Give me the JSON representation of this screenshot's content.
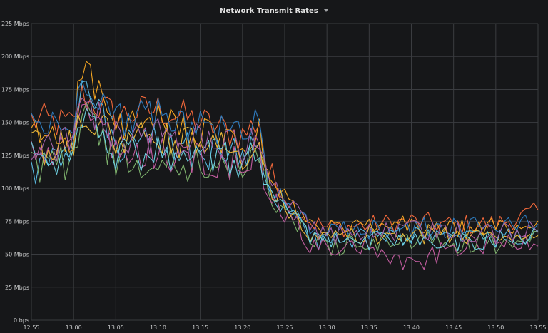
{
  "panel": {
    "title": "Network Transmit Rates"
  },
  "chart_data": {
    "type": "line",
    "title": "Network Transmit Rates",
    "xlabel": "",
    "ylabel": "",
    "ylim": [
      0,
      225
    ],
    "y_unit": "Mbps",
    "y_ticks": [
      {
        "value": 225,
        "label": "225 Mbps"
      },
      {
        "value": 200,
        "label": "200 Mbps"
      },
      {
        "value": 175,
        "label": "175 Mbps"
      },
      {
        "value": 150,
        "label": "150 Mbps"
      },
      {
        "value": 125,
        "label": "125 Mbps"
      },
      {
        "value": 100,
        "label": "100 Mbps"
      },
      {
        "value": 75,
        "label": "75 Mbps"
      },
      {
        "value": 50,
        "label": "50 Mbps"
      },
      {
        "value": 25,
        "label": "25 Mbps"
      },
      {
        "value": 0,
        "label": "0 bps"
      }
    ],
    "x_ticks": [
      "12:55",
      "13:00",
      "13:05",
      "13:10",
      "13:15",
      "13:20",
      "13:25",
      "13:30",
      "13:35",
      "13:40",
      "13:45",
      "13:50",
      "13:55"
    ],
    "grid": true,
    "legend": "none",
    "series": [
      {
        "color": "#f2683b",
        "x": [
          "12:55",
          "13:00",
          "13:01",
          "13:05",
          "13:10",
          "13:15",
          "13:20",
          "13:22",
          "13:23",
          "13:25",
          "13:26",
          "13:28",
          "13:30",
          "13:35",
          "13:40",
          "13:45",
          "13:50",
          "13:55"
        ],
        "values": [
          152,
          148,
          170,
          155,
          160,
          150,
          140,
          152,
          110,
          95,
          88,
          75,
          70,
          72,
          75,
          72,
          73,
          82
        ]
      },
      {
        "color": "#f5a623",
        "x": [
          "12:55",
          "13:00",
          "13:01",
          "13:05",
          "13:10",
          "13:15",
          "13:20",
          "13:22",
          "13:23",
          "13:25",
          "13:26",
          "13:28",
          "13:30",
          "13:35",
          "13:40",
          "13:45",
          "13:50",
          "13:55"
        ],
        "values": [
          140,
          140,
          197,
          145,
          150,
          140,
          132,
          140,
          105,
          95,
          85,
          72,
          68,
          70,
          72,
          68,
          70,
          72
        ]
      },
      {
        "color": "#2f7dc0",
        "x": [
          "12:55",
          "13:00",
          "13:01",
          "13:05",
          "13:10",
          "13:15",
          "13:20",
          "13:22",
          "13:23",
          "13:25",
          "13:26",
          "13:28",
          "13:30",
          "13:35",
          "13:40",
          "13:45",
          "13:50",
          "13:55"
        ],
        "values": [
          150,
          145,
          188,
          152,
          155,
          148,
          140,
          155,
          108,
          92,
          85,
          70,
          66,
          68,
          70,
          70,
          72,
          75
        ]
      },
      {
        "color": "#58b7dd",
        "x": [
          "12:55",
          "13:00",
          "13:01",
          "13:05",
          "13:10",
          "13:15",
          "13:20",
          "13:22",
          "13:23",
          "13:25",
          "13:26",
          "13:28",
          "13:30",
          "13:35",
          "13:40",
          "13:45",
          "13:50",
          "13:55"
        ],
        "values": [
          112,
          125,
          185,
          130,
          135,
          128,
          125,
          145,
          100,
          85,
          80,
          62,
          60,
          62,
          65,
          62,
          62,
          64
        ]
      },
      {
        "color": "#7eb26d",
        "x": [
          "12:55",
          "13:00",
          "13:01",
          "13:05",
          "13:10",
          "13:15",
          "13:20",
          "13:22",
          "13:23",
          "13:25",
          "13:26",
          "13:28",
          "13:30",
          "13:35",
          "13:40",
          "13:45",
          "13:50",
          "13:55"
        ],
        "values": [
          118,
          120,
          165,
          120,
          118,
          118,
          115,
          132,
          95,
          82,
          78,
          60,
          56,
          58,
          60,
          58,
          58,
          60
        ]
      },
      {
        "color": "#c15c9f",
        "x": [
          "12:55",
          "13:00",
          "13:01",
          "13:05",
          "13:10",
          "13:15",
          "13:20",
          "13:22",
          "13:23",
          "13:25",
          "13:26",
          "13:28",
          "13:30",
          "13:35",
          "13:40",
          "13:45",
          "13:50",
          "13:55"
        ],
        "values": [
          125,
          128,
          172,
          128,
          125,
          122,
          118,
          130,
          98,
          80,
          75,
          58,
          55,
          55,
          40,
          56,
          58,
          62
        ]
      },
      {
        "color": "#eab839",
        "x": [
          "12:55",
          "13:00",
          "13:01",
          "13:05",
          "13:10",
          "13:15",
          "13:20",
          "13:22",
          "13:23",
          "13:25",
          "13:26",
          "13:28",
          "13:30",
          "13:35",
          "13:40",
          "13:45",
          "13:50",
          "13:55"
        ],
        "values": [
          130,
          130,
          160,
          135,
          138,
          132,
          128,
          140,
          102,
          88,
          82,
          66,
          62,
          64,
          66,
          64,
          64,
          66
        ]
      },
      {
        "color": "#6ed0e0",
        "x": [
          "12:55",
          "13:00",
          "13:01",
          "13:05",
          "13:10",
          "13:15",
          "13:20",
          "13:22",
          "13:23",
          "13:25",
          "13:26",
          "13:28",
          "13:30",
          "13:35",
          "13:40",
          "13:45",
          "13:50",
          "13:55"
        ],
        "values": [
          122,
          125,
          155,
          125,
          128,
          124,
          120,
          135,
          98,
          84,
          80,
          64,
          60,
          60,
          62,
          60,
          62,
          63
        ]
      },
      {
        "color": "#a563a8",
        "x": [
          "12:55",
          "13:00",
          "13:01",
          "13:05",
          "13:10",
          "13:15",
          "13:20",
          "13:22",
          "13:23",
          "13:25",
          "13:26",
          "13:28",
          "13:30",
          "13:35",
          "13:40",
          "13:45",
          "13:50",
          "13:55"
        ],
        "values": [
          135,
          132,
          168,
          138,
          140,
          135,
          130,
          142,
          104,
          90,
          84,
          68,
          64,
          66,
          68,
          66,
          66,
          70
        ]
      }
    ]
  }
}
